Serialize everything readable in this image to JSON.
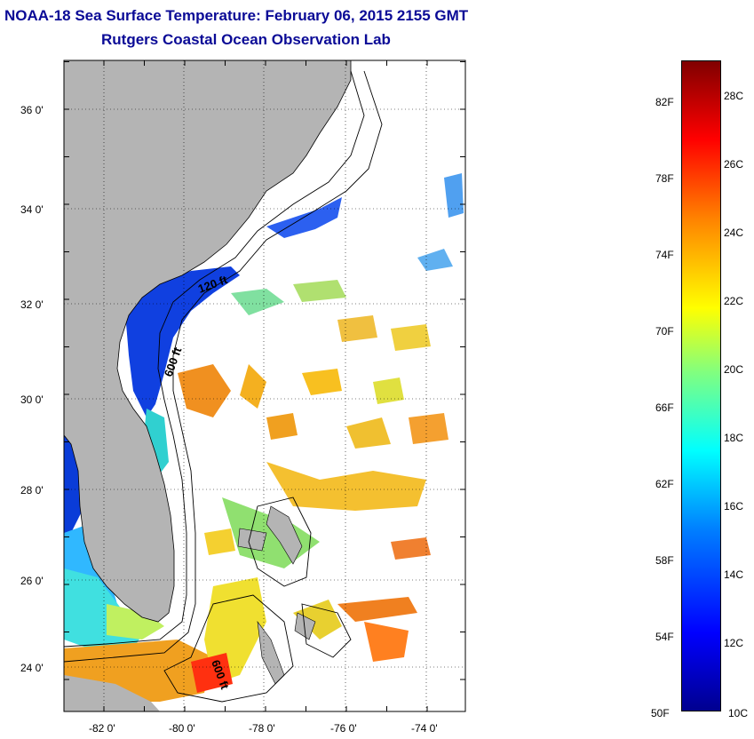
{
  "title": {
    "line1": "NOAA-18 Sea Surface Temperature:  February 06, 2015 2155 GMT",
    "line2": "Rutgers Coastal Ocean Observation Lab"
  },
  "map": {
    "lon_range": [
      -83,
      -73
    ],
    "lat_range": [
      23,
      37
    ],
    "lon_ticks": [
      "-82 0'",
      "-80 0'",
      "-78 0'",
      "-76 0'",
      "-74 0'"
    ],
    "lat_ticks": [
      "36 0'",
      "34 0'",
      "32 0'",
      "30 0'",
      "28 0'",
      "26 0'",
      "24 0'"
    ],
    "contour_labels": [
      "120 ft",
      "600 ft",
      "600 ft"
    ],
    "colors": {
      "land": "#b4b4b4",
      "grid": "#000000"
    }
  },
  "colorbar": {
    "fahrenheit_labels": [
      "82F",
      "78F",
      "74F",
      "70F",
      "66F",
      "62F",
      "58F",
      "54F",
      "50F"
    ],
    "celsius_labels": [
      "28C",
      "26C",
      "24C",
      "22C",
      "20C",
      "18C",
      "16C",
      "14C",
      "12C",
      "10C"
    ],
    "range_c": [
      10,
      29
    ]
  }
}
